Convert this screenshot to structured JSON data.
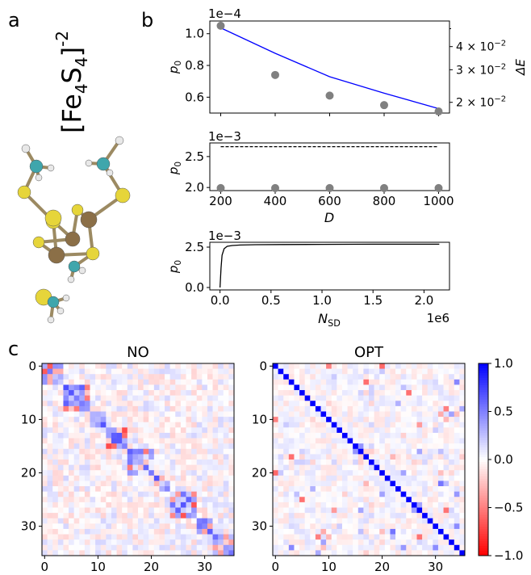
{
  "panel_labels": [
    "a",
    "b",
    "c"
  ],
  "molecule": {
    "formula_base": "[Fe",
    "formula_sub1": "4",
    "formula_mid": "S",
    "formula_sub2": "4",
    "formula_end": "]",
    "formula_charge": "-2",
    "atom_colors": {
      "Fe": "#8B6F47",
      "S": "#E6D53A",
      "C": "#3FA6AC",
      "H": "#E8E8E8"
    }
  },
  "chart_data": [
    {
      "type": "scatter",
      "panel": "b-top",
      "x": [
        200,
        400,
        600,
        800,
        1000
      ],
      "series": [
        {
          "values": [
            1.05,
            0.74,
            0.61,
            0.55,
            0.51
          ],
          "color": "#808080",
          "marker": "circle"
        },
        {
          "values": [
            0.0505,
            0.0368,
            0.0275,
            0.0224,
            0.0185
          ],
          "color": "#0000ff",
          "marker": "line",
          "axis": "right"
        }
      ],
      "ylabel": "p_0",
      "ylabel_right": "ΔE",
      "y_scale_text": "1e−4",
      "xlim": [
        160,
        1040
      ],
      "ylim": [
        0.5,
        1.08
      ],
      "yticks": [
        "0.6",
        "0.8",
        "1.0"
      ],
      "yticks_right": [
        "2 × 10^−2",
        "3 × 10^−2",
        "4 × 10^−2"
      ],
      "y_right_scale": "log",
      "y_right_lim": [
        0.0175,
        0.055
      ]
    },
    {
      "type": "scatter",
      "panel": "b-middle",
      "x": [
        200,
        400,
        600,
        800,
        1000
      ],
      "series": [
        {
          "values": [
            1.99,
            1.99,
            1.99,
            1.99,
            1.99
          ],
          "color": "#808080",
          "marker": "circle"
        },
        {
          "values": [
            2.66,
            2.66,
            2.66,
            2.66,
            2.66
          ],
          "color": "#000000",
          "marker": "dashed-line"
        }
      ],
      "xlabel": "D",
      "ylabel": "p_0",
      "y_scale_text": "1e−3",
      "xticks": [
        "200",
        "400",
        "600",
        "800",
        "1000"
      ],
      "yticks": [
        "2.0",
        "2.5"
      ],
      "xlim": [
        160,
        1040
      ],
      "ylim": [
        1.95,
        2.72
      ]
    },
    {
      "type": "line",
      "panel": "b-bottom",
      "x": [
        0,
        0.01,
        0.02,
        0.04,
        0.07,
        0.12,
        0.2,
        0.35,
        0.6,
        1.0,
        1.5,
        2.15
      ],
      "series": [
        {
          "values": [
            0.0,
            1.2,
            2.0,
            2.4,
            2.55,
            2.6,
            2.63,
            2.65,
            2.66,
            2.67,
            2.68,
            2.68
          ],
          "color": "#000000"
        }
      ],
      "xlabel": "N_SD",
      "ylabel": "p_0",
      "y_scale_text": "1e−3",
      "x_scale_text": "1e6",
      "xticks": [
        "0.0",
        "0.5",
        "1.0",
        "1.5",
        "2.0"
      ],
      "yticks": [
        "0.0",
        "2.5"
      ],
      "xlim": [
        -0.1,
        2.25
      ],
      "ylim": [
        -0.15,
        2.8
      ]
    },
    {
      "type": "heatmap",
      "panel": "c-left",
      "title": "NO",
      "size": 36,
      "ticks": [
        "0",
        "10",
        "20",
        "30"
      ],
      "blocks": [
        [
          0,
          4,
          0.7
        ],
        [
          4,
          9,
          0.5
        ],
        [
          9,
          12,
          0.55
        ],
        [
          12,
          16,
          0.6
        ],
        [
          16,
          21,
          0.45
        ],
        [
          21,
          24,
          0.5
        ],
        [
          24,
          29,
          0.55
        ],
        [
          29,
          32,
          0.45
        ],
        [
          32,
          36,
          0.5
        ]
      ]
    },
    {
      "type": "heatmap",
      "panel": "c-right",
      "title": "OPT",
      "size": 36,
      "ticks": [
        "0",
        "10",
        "20",
        "30"
      ],
      "diagonal_value": 1.0
    }
  ],
  "colorbar": {
    "ticks": [
      "1.0",
      "0.5",
      "0.0",
      "−0.5",
      "−1.0"
    ],
    "vmin": -1.0,
    "vmax": 1.0
  }
}
